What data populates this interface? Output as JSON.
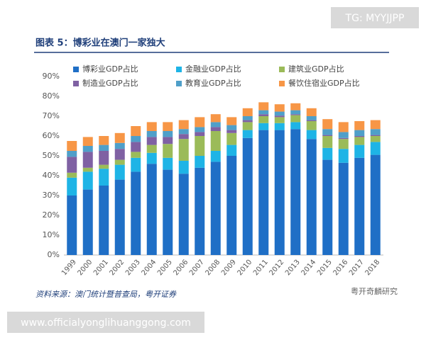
{
  "chart_data": {
    "type": "stacked-bar",
    "title": "图表 5：博彩业在澳门一家独大",
    "source": "资料来源：澳门统计暨普查局，粤开证券",
    "categories": [
      "1999",
      "2000",
      "2001",
      "2002",
      "2003",
      "2004",
      "2005",
      "2006",
      "2007",
      "2008",
      "2009",
      "2010",
      "2011",
      "2012",
      "2013",
      "2014",
      "2015",
      "2016",
      "2017",
      "2018"
    ],
    "ylim": [
      0,
      90
    ],
    "yticks": [
      {
        "value": 0,
        "label": "0%"
      },
      {
        "value": 10,
        "label": "10%"
      },
      {
        "value": 20,
        "label": "20%"
      },
      {
        "value": 30,
        "label": "30%"
      },
      {
        "value": 40,
        "label": "40%"
      },
      {
        "value": 50,
        "label": "50%"
      },
      {
        "value": 60,
        "label": "60%"
      },
      {
        "value": 70,
        "label": "70%"
      },
      {
        "value": 80,
        "label": "80%"
      },
      {
        "value": 90,
        "label": "90%"
      }
    ],
    "grid": false,
    "series": [
      {
        "name": "博彩业GDP占比",
        "color": "#1f6fc6",
        "values": [
          30,
          33,
          35,
          38,
          42,
          46,
          43,
          41,
          44,
          47,
          50,
          59,
          63,
          63,
          63.5,
          58.5,
          48,
          46.5,
          49,
          50.5
        ]
      },
      {
        "name": "金融业GDP占比",
        "color": "#1eb4e6",
        "values": [
          9,
          9,
          8.5,
          7.5,
          7,
          5.5,
          6,
          6.5,
          6,
          5.5,
          5.5,
          4,
          3.5,
          3.5,
          3.5,
          4.5,
          6,
          7,
          6.5,
          6.5
        ]
      },
      {
        "name": "建筑业GDP占比",
        "color": "#9bbb59",
        "values": [
          2.5,
          2,
          2,
          2.5,
          3,
          4,
          7,
          11,
          10,
          10,
          6,
          4,
          3.5,
          3,
          3.5,
          4.5,
          6,
          5,
          4,
          3
        ]
      },
      {
        "name": "制造业GDP占比",
        "color": "#7f61a3",
        "values": [
          8,
          8,
          7,
          5.5,
          5,
          4,
          3.5,
          2.5,
          2,
          2,
          1.5,
          1,
          1,
          0.8,
          0.5,
          0.5,
          0.5,
          0.5,
          0.5,
          0.5
        ]
      },
      {
        "name": "教育业GDP占比",
        "color": "#4f9fc9",
        "values": [
          3,
          3,
          3,
          3,
          3,
          3,
          3,
          2.5,
          2.5,
          2.5,
          2.5,
          2,
          2,
          2,
          2,
          2,
          3,
          3,
          3,
          3
        ]
      },
      {
        "name": "餐饮住宿业GDP占比",
        "color": "#f79646",
        "values": [
          5,
          4.5,
          4.5,
          5,
          5,
          4.5,
          4.5,
          4.5,
          5,
          4,
          4,
          4,
          4,
          3.7,
          3.5,
          4,
          5,
          5,
          4.5,
          4.5
        ]
      }
    ]
  },
  "overlay": {
    "tag": "TG: MYYJJPP",
    "url": "www.officialyonglihuanggong.com",
    "brand": "粤开奇麟研究"
  }
}
